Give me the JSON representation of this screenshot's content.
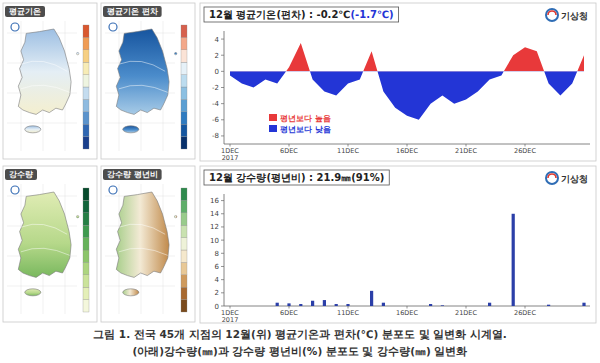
{
  "maps": [
    {
      "title": "평균기온"
    },
    {
      "title": "평균기온 편차"
    },
    {
      "title": "강수량"
    },
    {
      "title": "강수량 평년비"
    }
  ],
  "chart_data": [
    {
      "type": "area",
      "title": "12월 평균기온(편차) : -0.2℃",
      "title_anomaly": "(-1.7℃)",
      "source": "기상청",
      "categories": [
        "1DEC",
        null,
        null,
        null,
        null,
        "6DEC",
        null,
        null,
        null,
        null,
        "11DEC",
        null,
        null,
        null,
        null,
        "16DEC",
        null,
        null,
        null,
        null,
        "21DEC",
        null,
        null,
        null,
        null,
        "26DEC",
        null,
        null,
        null,
        null,
        null
      ],
      "year_label": "2017",
      "values": [
        -0.5,
        -1.5,
        -2,
        -1,
        -1.5,
        0.5,
        3.5,
        -1,
        -2.5,
        -3,
        -1.5,
        -1,
        2.5,
        -2.5,
        -4.5,
        -5.5,
        -6,
        -4,
        -3,
        -4,
        -3.5,
        -2.5,
        -1,
        -0.5,
        2,
        3,
        2.5,
        -1.5,
        -3,
        -1.5,
        2
      ],
      "legend_items": [
        {
          "name": "평년보다 높음",
          "color": "#e8393a"
        },
        {
          "name": "평년보다 낮음",
          "color": "#2335d6"
        }
      ],
      "ylim": [
        -9,
        5
      ],
      "yticks": [
        -8,
        -6,
        -4,
        -2,
        0,
        2,
        4
      ],
      "legend": "lower left",
      "grid": false
    },
    {
      "type": "bar",
      "title": "12월 강수량(평년비) : 21.9㎜(91%)",
      "source": "기상청",
      "categories": [
        "1DEC",
        null,
        null,
        null,
        null,
        "6DEC",
        null,
        null,
        null,
        null,
        "11DEC",
        null,
        null,
        null,
        null,
        "16DEC",
        null,
        null,
        null,
        null,
        "21DEC",
        null,
        null,
        null,
        null,
        "26DEC",
        null,
        null,
        null,
        null,
        null
      ],
      "year_label": "2017",
      "values": [
        0,
        0,
        0,
        0,
        0.5,
        0.4,
        0.3,
        0.8,
        0.9,
        0.3,
        0.3,
        0,
        2.3,
        0.5,
        0,
        0,
        0,
        0.3,
        0.1,
        0,
        0,
        0,
        0.5,
        0,
        14,
        0,
        0,
        0.2,
        0,
        0,
        0.5
      ],
      "color": "#2b3fa8",
      "ylim": [
        0,
        17
      ],
      "yticks": [
        0,
        2,
        4,
        6,
        8,
        10,
        12,
        14,
        16
      ],
      "grid": false
    }
  ],
  "caption": [
    "그림 1. 전국 45개 지점의 12월(위) 평균기온과 편차(℃) 분포도 및 일변화 시계열.",
    "(아래)강수량(㎜)과 강수량 평년비(%) 분포도 및 강수량(㎜) 일변화"
  ]
}
